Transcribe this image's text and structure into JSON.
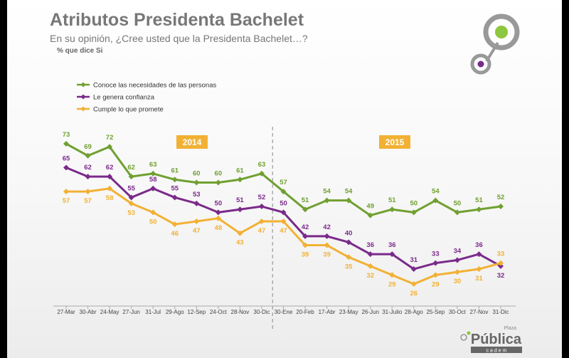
{
  "header": {
    "title": "Atributos Presidenta Bachelet",
    "subtitle": "En su opinión, ¿Cree usted que la Presidenta Bachelet…?",
    "note": "% que dice Si"
  },
  "chart_data": {
    "type": "line",
    "categories": [
      "27-Mar",
      "30-Abr",
      "24-May",
      "27-Jun",
      "31-Jul",
      "29-Ago",
      "12-Sep",
      "24-Oct",
      "28-Nov",
      "30-Dic",
      "30-Ene",
      "20-Feb",
      "17-Abr",
      "23-May",
      "26-Jun",
      "31-Julio",
      "28-Ago",
      "25-Sep",
      "30-Oct",
      "27-Nov",
      "31-Dic"
    ],
    "year_labels": [
      "2014",
      "2015"
    ],
    "legend_position": "top-left",
    "grid": false,
    "ylim": [
      20,
      80
    ],
    "series": [
      {
        "name": "Conoce las necesidades de las personas",
        "color": "#70a030",
        "values": [
          73,
          69,
          72,
          62,
          63,
          61,
          60,
          60,
          61,
          63,
          57,
          51,
          54,
          54,
          49,
          51,
          50,
          54,
          50,
          51,
          52
        ]
      },
      {
        "name": "Le genera confianza",
        "color": "#7a2a8a",
        "values": [
          65,
          62,
          62,
          55,
          58,
          55,
          53,
          50,
          51,
          52,
          50,
          42,
          42,
          40,
          36,
          36,
          31,
          33,
          34,
          36,
          32
        ]
      },
      {
        "name": "Cumple lo que promete",
        "color": "#f2b134",
        "values": [
          57,
          57,
          58,
          53,
          50,
          46,
          47,
          48,
          43,
          47,
          47,
          39,
          39,
          35,
          32,
          29,
          26,
          29,
          30,
          31,
          33
        ]
      }
    ]
  },
  "logo": {
    "small": "Plaza",
    "main": "Pública",
    "sub": "c a d e m",
    "colors": {
      "ring": "#999999",
      "green": "#8dc63f",
      "purple": "#7a2a8a"
    }
  }
}
